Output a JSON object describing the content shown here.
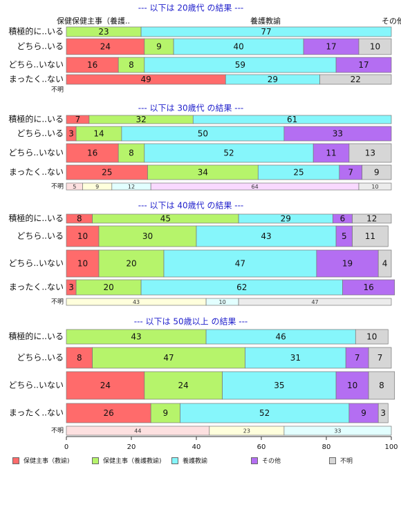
{
  "colors": {
    "title": "#2222cc",
    "border": "#777777",
    "missing": "#ececec"
  },
  "legend": [
    {
      "label": "保健主事（教諭)",
      "color": "#ff6b6b"
    },
    {
      "label": "保健主事（養護教諭)",
      "color": "#b6f46b"
    },
    {
      "label": "養護教諭",
      "color": "#86f6fb"
    },
    {
      "label": "その他",
      "color": "#b46ef2"
    },
    {
      "label": "不明",
      "color": "#d6d6d6"
    }
  ],
  "chart_data": {
    "type": "bar",
    "stacked": true,
    "orientation": "horizontal",
    "xlim": [
      0,
      100
    ],
    "xticks": [
      "0",
      "20",
      "40",
      "60",
      "80",
      "100"
    ],
    "top_labels": {
      "left": "保健保健主事（養護..",
      "middle": "養護教諭",
      "right": "その他"
    },
    "panels": [
      {
        "title": "--- 以下は 20歳代 の結果 ---",
        "rows": [
          {
            "label": "積極的に..いる",
            "values": [
              0,
              23,
              77,
              0,
              0
            ],
            "texts": [
              "",
              "23",
              "77",
              "",
              ""
            ],
            "style": "main"
          },
          {
            "label": "どちら..いる",
            "values": [
              24,
              9,
              40,
              17,
              10
            ],
            "texts": [
              "24",
              "9",
              "40",
              "17",
              "10"
            ],
            "style": "main"
          },
          {
            "label": "どちら..いない",
            "values": [
              16,
              8,
              59,
              17,
              0
            ],
            "texts": [
              "16",
              "8",
              "59",
              "17",
              ""
            ],
            "style": "main"
          },
          {
            "label": "まったく..ない",
            "values": [
              49,
              0,
              29,
              0,
              22
            ],
            "texts": [
              "49",
              "",
              "29",
              "",
              "22"
            ],
            "style": "main"
          },
          {
            "label": "不明",
            "values": [
              0,
              0,
              0,
              0,
              0
            ],
            "texts": [
              "",
              "",
              "",
              "",
              ""
            ],
            "style": "small"
          }
        ]
      },
      {
        "title": "--- 以下は 30歳代 の結果 ---",
        "rows": [
          {
            "label": "積極的に..いる",
            "values": [
              7,
              32,
              61,
              0,
              0
            ],
            "texts": [
              "7",
              "32",
              "61",
              "",
              ""
            ],
            "style": "main"
          },
          {
            "label": "どちら..いる",
            "values": [
              3,
              14,
              50,
              33,
              0
            ],
            "texts": [
              "3",
              "14",
              "50",
              "33",
              ""
            ],
            "style": "main"
          },
          {
            "label": "どちら..いない",
            "values": [
              16,
              8,
              52,
              11,
              13
            ],
            "texts": [
              "16",
              "8",
              "52",
              "11",
              "13"
            ],
            "style": "main"
          },
          {
            "label": "まったく..ない",
            "values": [
              25,
              34,
              25,
              7,
              9
            ],
            "texts": [
              "25",
              "34",
              "25",
              "7",
              "9"
            ],
            "style": "main"
          },
          {
            "label": "不明",
            "values": [
              5,
              9,
              12,
              64,
              10
            ],
            "texts": [
              "5",
              "9",
              "12",
              "64",
              "10"
            ],
            "style": "small"
          }
        ]
      },
      {
        "title": "--- 以下は 40歳代 の結果 ---",
        "rows": [
          {
            "label": "積極的に..いる",
            "values": [
              8,
              45,
              29,
              6,
              12
            ],
            "texts": [
              "8",
              "45",
              "29",
              "6",
              "12"
            ],
            "style": "main"
          },
          {
            "label": "どちら..いる",
            "values": [
              10,
              30,
              43,
              5,
              11
            ],
            "texts": [
              "10",
              "30",
              "43",
              "5",
              "11"
            ],
            "style": "main"
          },
          {
            "label": "どちら..いない",
            "values": [
              10,
              20,
              47,
              19,
              4
            ],
            "texts": [
              "10",
              "20",
              "47",
              "19",
              "4"
            ],
            "style": "main"
          },
          {
            "label": "まったく..ない",
            "values": [
              3,
              20,
              62,
              16,
              0
            ],
            "texts": [
              "3",
              "20",
              "62",
              "16",
              ""
            ],
            "style": "main"
          },
          {
            "label": "不明",
            "values": [
              0,
              43,
              10,
              0,
              47
            ],
            "texts": [
              "",
              "43",
              "10",
              "",
              "47"
            ],
            "style": "small"
          }
        ]
      },
      {
        "title": "--- 以下は 50歳以上 の結果 ---",
        "rows": [
          {
            "label": "積極的に..いる",
            "values": [
              0,
              43,
              46,
              0,
              10
            ],
            "texts": [
              "",
              "43",
              "46",
              "",
              "10"
            ],
            "style": "main"
          },
          {
            "label": "どちら..いる",
            "values": [
              8,
              47,
              31,
              7,
              7
            ],
            "texts": [
              "8",
              "47",
              "31",
              "7",
              "7"
            ],
            "style": "main"
          },
          {
            "label": "どちら..いない",
            "values": [
              24,
              24,
              35,
              10,
              8
            ],
            "texts": [
              "24",
              "24",
              "35",
              "10",
              "8"
            ],
            "style": "main"
          },
          {
            "label": "まったく..ない",
            "values": [
              26,
              9,
              52,
              9,
              3
            ],
            "texts": [
              "26",
              "9",
              "52",
              "9",
              "3"
            ],
            "style": "main"
          },
          {
            "label": "不明",
            "values": [
              44,
              23,
              33,
              0,
              0
            ],
            "texts": [
              "44",
              "23",
              "33",
              "",
              ""
            ],
            "style": "small"
          }
        ]
      }
    ]
  }
}
